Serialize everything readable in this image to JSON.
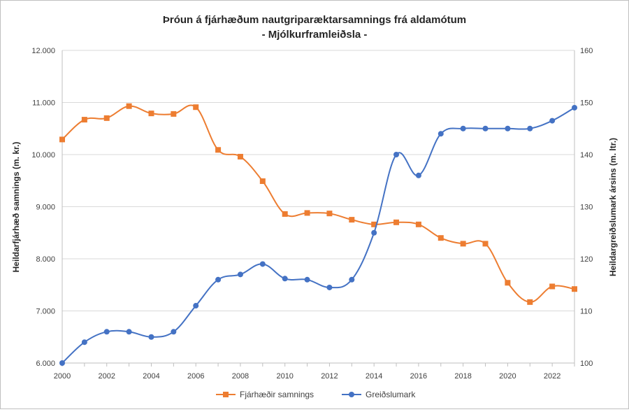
{
  "chart_data": {
    "type": "line",
    "title": "Þróun á fjárhæðum nautgriparæktarsamnings frá aldamótum",
    "subtitle": "- Mjólkurframleiðsla -",
    "ylabel": "Heildarfjárhæð samnings (m. kr.)",
    "y2label": "Heildargreiðslumark ársins (m. ltr.)",
    "x": [
      2000,
      2001,
      2002,
      2003,
      2004,
      2005,
      2006,
      2007,
      2008,
      2009,
      2010,
      2011,
      2012,
      2013,
      2014,
      2015,
      2016,
      2017,
      2018,
      2019,
      2020,
      2021,
      2022,
      2023
    ],
    "xlim": [
      2000,
      2023
    ],
    "x_ticks": [
      "2000",
      "2002",
      "2004",
      "2006",
      "2008",
      "2010",
      "2012",
      "2014",
      "2016",
      "2018",
      "2020",
      "2022"
    ],
    "ylim": [
      6000,
      12000
    ],
    "y_ticks": [
      "6.000",
      "7.000",
      "8.000",
      "9.000",
      "10.000",
      "11.000",
      "12.000"
    ],
    "y2lim": [
      100,
      160
    ],
    "y2_ticks": [
      "100",
      "110",
      "120",
      "130",
      "140",
      "150",
      "160"
    ],
    "grid": true,
    "legend_position": "bottom",
    "series": [
      {
        "name": "Fjárhæðir samnings",
        "axis": "left",
        "marker": "square",
        "color": "#ed7d31",
        "values": [
          10290,
          10670,
          10700,
          10930,
          10790,
          10780,
          10910,
          10090,
          9960,
          9490,
          8860,
          8880,
          8870,
          8750,
          8660,
          8700,
          8660,
          8400,
          8290,
          8290,
          7540,
          7170,
          7470,
          7420
        ]
      },
      {
        "name": "Greiðslumark",
        "axis": "right",
        "marker": "circle",
        "color": "#4472c4",
        "values": [
          100,
          104,
          106,
          106,
          105,
          106,
          111,
          116,
          117,
          119,
          116.2,
          116,
          114.5,
          116,
          125,
          140,
          136,
          144,
          145,
          145,
          145,
          145,
          146.5,
          149
        ]
      }
    ]
  }
}
